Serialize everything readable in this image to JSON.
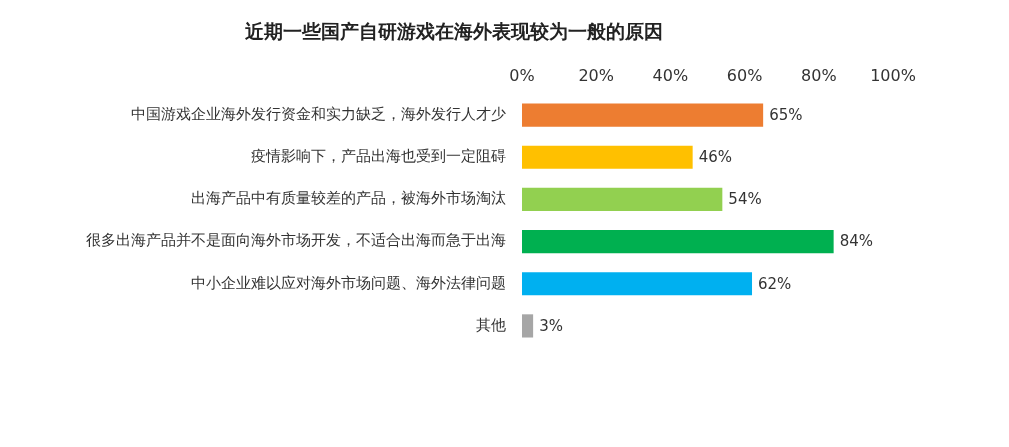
{
  "chart_data": {
    "type": "bar",
    "orientation": "horizontal",
    "title": "近期一些国产自研游戏在海外表现较为一般的原因",
    "categories": [
      "中国游戏企业海外发行资金和实力缺乏，海外发行人才少",
      "疫情影响下，产品出海也受到一定阻碍",
      "出海产品中有质量较差的产品，被海外市场淘汰",
      "很多出海产品并不是面向海外市场开发，不适合出海而急于出海",
      "中小企业难以应对海外市场问题、海外法律问题",
      "其他"
    ],
    "values": [
      65,
      46,
      54,
      84,
      62,
      3
    ],
    "colors": [
      "#ed7d31",
      "#ffc000",
      "#92d050",
      "#00b050",
      "#00b0f0",
      "#a6a6a6"
    ],
    "value_labels": [
      "65%",
      "46%",
      "54%",
      "84%",
      "62%",
      "3%"
    ],
    "xlim": [
      0,
      100
    ],
    "xticks": [
      {
        "value": 0,
        "label": "0%"
      },
      {
        "value": 20,
        "label": "20%"
      },
      {
        "value": 40,
        "label": "40%"
      },
      {
        "value": 60,
        "label": "60%"
      },
      {
        "value": 80,
        "label": "80%"
      },
      {
        "value": 100,
        "label": "100%"
      }
    ],
    "grid": false,
    "legend": false
  }
}
